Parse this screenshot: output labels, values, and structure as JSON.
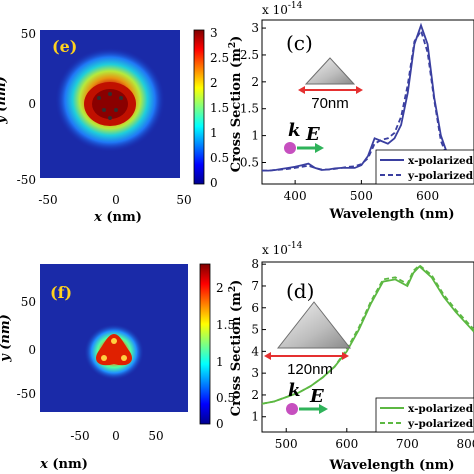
{
  "chart_data": [
    {
      "id": "e",
      "type": "heatmap",
      "panel_label": "(e)",
      "xlabel_var": "x",
      "xlabel_unit": " (nm)",
      "ylabel": "y (nm)",
      "xticks": [
        "-50",
        "0",
        "50"
      ],
      "yticks": [
        "50",
        "0",
        "-50"
      ],
      "xlim": [
        -50,
        50
      ],
      "ylim": [
        -50,
        50
      ],
      "colorbar": {
        "ticks": [
          "3",
          "2.5",
          "2",
          "1.5",
          "1",
          "0.5",
          "0"
        ],
        "range": [
          0,
          3
        ]
      },
      "colormap": "jet",
      "shape": "triangle-rounded"
    },
    {
      "id": "c",
      "type": "line",
      "panel_label": "(c)",
      "title": "x 10",
      "title_exp": "-14",
      "xlabel": "Wavelength (nm)",
      "ylabel": "Cross Section (m",
      "ylabel_sup": "2",
      "ylabel_close": ")",
      "xticks": [
        "400",
        "500",
        "600"
      ],
      "yticks": [
        "3",
        "2.5",
        "2",
        "1.5",
        "1",
        "0.5"
      ],
      "xlim": [
        350,
        670
      ],
      "ylim": [
        0.1,
        3.15
      ],
      "size_label": "70nm",
      "legend_position": "bottom-right",
      "series": [
        {
          "name": "x-polarized",
          "style": "solid",
          "color": "#3a3fa0",
          "x": [
            350,
            360,
            370,
            380,
            390,
            400,
            410,
            420,
            430,
            440,
            450,
            460,
            470,
            480,
            490,
            500,
            510,
            520,
            530,
            540,
            550,
            560,
            570,
            580,
            590,
            600,
            610,
            620,
            630,
            640,
            650,
            660,
            670
          ],
          "y": [
            0.35,
            0.35,
            0.36,
            0.38,
            0.4,
            0.42,
            0.45,
            0.48,
            0.4,
            0.36,
            0.37,
            0.39,
            0.4,
            0.4,
            0.4,
            0.45,
            0.62,
            0.95,
            0.9,
            0.85,
            0.95,
            1.2,
            1.8,
            2.7,
            3.05,
            2.7,
            1.7,
            1.0,
            0.65,
            0.5,
            0.42,
            0.38,
            0.36
          ]
        },
        {
          "name": "y-polarized",
          "style": "dashed",
          "color": "#3a3fa0",
          "x": [
            350,
            360,
            370,
            380,
            390,
            400,
            410,
            420,
            430,
            440,
            450,
            460,
            470,
            480,
            490,
            500,
            510,
            520,
            530,
            540,
            550,
            560,
            570,
            580,
            590,
            600,
            610,
            620,
            630,
            640,
            650,
            660,
            670
          ],
          "y": [
            0.35,
            0.35,
            0.36,
            0.37,
            0.38,
            0.4,
            0.42,
            0.44,
            0.4,
            0.37,
            0.37,
            0.38,
            0.4,
            0.42,
            0.43,
            0.47,
            0.58,
            0.85,
            0.92,
            0.95,
            1.05,
            1.35,
            1.95,
            2.75,
            2.95,
            2.55,
            1.65,
            0.9,
            0.6,
            0.47,
            0.4,
            0.37,
            0.35
          ]
        }
      ]
    },
    {
      "id": "f",
      "type": "heatmap",
      "panel_label": "(f)",
      "xlabel_var": "x",
      "xlabel_unit": " (nm)",
      "ylabel": "y (nm)",
      "xticks": [
        "-50",
        "0",
        "50"
      ],
      "yticks": [
        "50",
        "0",
        "-50"
      ],
      "xlim": [
        -100,
        100
      ],
      "ylim": [
        -100,
        100
      ],
      "colorbar": {
        "ticks": [
          "2",
          "1.5",
          "1",
          "0.5",
          "0"
        ],
        "range": [
          0,
          2.2
        ]
      },
      "colormap": "jet",
      "shape": "triangle-three-hotspots"
    },
    {
      "id": "d",
      "type": "line",
      "panel_label": "(d)",
      "title": "x 10",
      "title_exp": "-14",
      "xlabel": "Wavelength (nm)",
      "ylabel": "Cross Section (m",
      "ylabel_sup": "2",
      "ylabel_close": ")",
      "xticks": [
        "500",
        "600",
        "700",
        "800"
      ],
      "yticks": [
        "8",
        "7",
        "6",
        "5",
        "4",
        "3",
        "2",
        "1"
      ],
      "xlim": [
        460,
        810
      ],
      "ylim": [
        0.3,
        8.1
      ],
      "size_label": "120nm",
      "legend_position": "bottom-right",
      "series": [
        {
          "name": "x-polarized",
          "style": "solid",
          "color": "#5cb842",
          "x": [
            460,
            480,
            500,
            520,
            540,
            560,
            580,
            600,
            620,
            640,
            660,
            680,
            700,
            710,
            720,
            740,
            760,
            780,
            800,
            810
          ],
          "y": [
            1.6,
            1.7,
            1.9,
            2.1,
            2.4,
            2.8,
            3.3,
            4.0,
            5.0,
            6.2,
            7.2,
            7.3,
            7.0,
            7.6,
            7.9,
            7.4,
            6.5,
            5.8,
            5.2,
            4.9
          ]
        },
        {
          "name": "y-polarized",
          "style": "dashed",
          "color": "#5cb842",
          "x": [
            460,
            480,
            500,
            520,
            540,
            560,
            580,
            600,
            620,
            640,
            660,
            680,
            700,
            710,
            720,
            740,
            760,
            780,
            800,
            810
          ],
          "y": [
            1.6,
            1.7,
            1.9,
            2.1,
            2.4,
            2.8,
            3.3,
            4.1,
            5.1,
            6.3,
            7.3,
            7.4,
            7.1,
            7.7,
            7.95,
            7.5,
            6.6,
            5.9,
            5.3,
            5.0
          ]
        }
      ]
    }
  ]
}
